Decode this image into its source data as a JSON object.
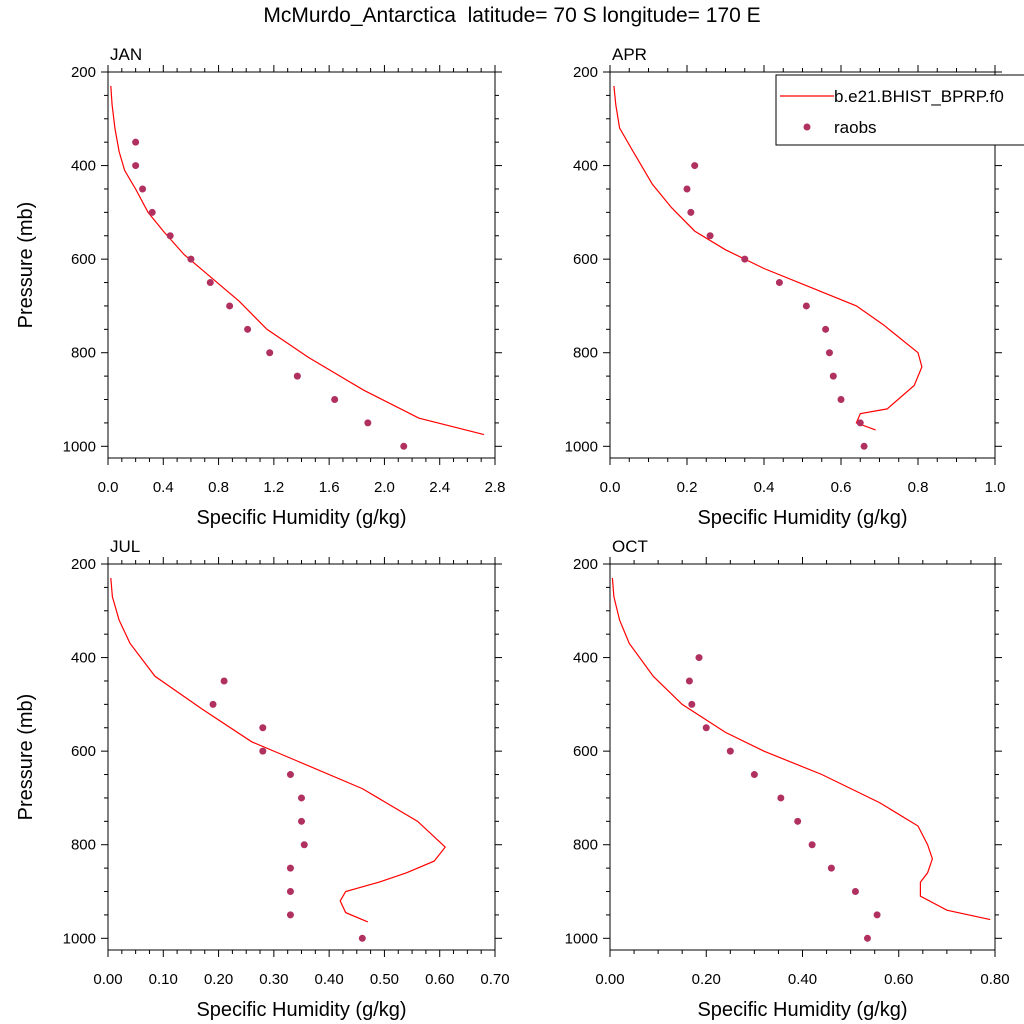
{
  "title": "McMurdo_Antarctica  latitude= 70 S longitude= 170 E",
  "colors": {
    "model": "#ff0000",
    "obs": "#b03060"
  },
  "legend": {
    "model_label": "b.e21.BHIST_BPRP.f0",
    "obs_label": "raobs",
    "placement": "top-right of APR panel"
  },
  "chart_data": [
    {
      "type": "scatter+line",
      "panel_label": "JAN",
      "xlabel": "Specific Humidity (g/kg)",
      "ylabel": "Pressure (mb)",
      "xlim": [
        0,
        2.8
      ],
      "ylim": [
        1025,
        200
      ],
      "xticks": [
        "0.0",
        "0.4",
        "0.8",
        "1.2",
        "1.6",
        "2.0",
        "2.4",
        "2.8"
      ],
      "xtick_values": [
        0,
        0.4,
        0.8,
        1.2,
        1.6,
        2.0,
        2.4,
        2.8
      ],
      "yticks": [
        "200",
        "400",
        "600",
        "800",
        "1000"
      ],
      "ytick_values": [
        200,
        400,
        600,
        800,
        1000
      ],
      "series": [
        {
          "name": "b.e21.BHIST_BPRP.f0",
          "kind": "line",
          "x": [
            0.02,
            0.03,
            0.05,
            0.08,
            0.12,
            0.2,
            0.29,
            0.4,
            0.55,
            0.75,
            0.95,
            1.15,
            1.45,
            1.85,
            2.25,
            2.52,
            2.72
          ],
          "y": [
            230,
            270,
            320,
            370,
            410,
            450,
            500,
            540,
            590,
            640,
            690,
            750,
            810,
            880,
            940,
            960,
            975
          ]
        },
        {
          "name": "raobs",
          "kind": "scatter",
          "x": [
            0.2,
            0.2,
            0.25,
            0.32,
            0.45,
            0.6,
            0.74,
            0.88,
            1.01,
            1.17,
            1.37,
            1.64,
            1.88,
            2.14
          ],
          "y": [
            350,
            400,
            450,
            500,
            550,
            600,
            650,
            700,
            750,
            800,
            850,
            900,
            950,
            1000
          ]
        }
      ]
    },
    {
      "type": "scatter+line",
      "panel_label": "APR",
      "xlabel": "Specific Humidity (g/kg)",
      "ylabel": "",
      "xlim": [
        0,
        1.0
      ],
      "ylim": [
        1025,
        200
      ],
      "xticks": [
        "0.0",
        "0.2",
        "0.4",
        "0.6",
        "0.8",
        "1.0"
      ],
      "xtick_values": [
        0,
        0.2,
        0.4,
        0.6,
        0.8,
        1.0
      ],
      "yticks": [
        "200",
        "400",
        "600",
        "800",
        "1000"
      ],
      "ytick_values": [
        200,
        400,
        600,
        800,
        1000
      ],
      "series": [
        {
          "name": "b.e21.BHIST_BPRP.f0",
          "kind": "line",
          "x": [
            0.01,
            0.015,
            0.025,
            0.06,
            0.11,
            0.16,
            0.22,
            0.3,
            0.4,
            0.52,
            0.64,
            0.71,
            0.8,
            0.81,
            0.79,
            0.72,
            0.65,
            0.64,
            0.69
          ],
          "y": [
            230,
            270,
            320,
            370,
            440,
            490,
            540,
            580,
            620,
            660,
            700,
            740,
            800,
            830,
            870,
            920,
            930,
            950,
            965
          ]
        },
        {
          "name": "raobs",
          "kind": "scatter",
          "x": [
            0.22,
            0.2,
            0.21,
            0.26,
            0.35,
            0.44,
            0.51,
            0.56,
            0.57,
            0.58,
            0.6,
            0.65,
            0.66
          ],
          "y": [
            400,
            450,
            500,
            550,
            600,
            650,
            700,
            750,
            800,
            850,
            900,
            950,
            1000
          ]
        }
      ]
    },
    {
      "type": "scatter+line",
      "panel_label": "JUL",
      "xlabel": "Specific Humidity (g/kg)",
      "ylabel": "Pressure (mb)",
      "xlim": [
        0,
        0.7
      ],
      "ylim": [
        1025,
        200
      ],
      "xticks": [
        "0.00",
        "0.10",
        "0.20",
        "0.30",
        "0.40",
        "0.50",
        "0.60",
        "0.70"
      ],
      "xtick_values": [
        0,
        0.1,
        0.2,
        0.3,
        0.4,
        0.5,
        0.6,
        0.7
      ],
      "yticks": [
        "200",
        "400",
        "600",
        "800",
        "1000"
      ],
      "ytick_values": [
        200,
        400,
        600,
        800,
        1000
      ],
      "series": [
        {
          "name": "b.e21.BHIST_BPRP.f0",
          "kind": "line",
          "x": [
            0.005,
            0.008,
            0.02,
            0.04,
            0.085,
            0.17,
            0.26,
            0.34,
            0.46,
            0.56,
            0.61,
            0.59,
            0.54,
            0.49,
            0.43,
            0.42,
            0.43,
            0.47
          ],
          "y": [
            230,
            270,
            320,
            370,
            440,
            510,
            580,
            620,
            680,
            750,
            805,
            835,
            860,
            880,
            900,
            920,
            945,
            965
          ]
        },
        {
          "name": "raobs",
          "kind": "scatter",
          "x": [
            0.21,
            0.19,
            0.28,
            0.28,
            0.33,
            0.35,
            0.35,
            0.355,
            0.33,
            0.33,
            0.33,
            0.46
          ],
          "y": [
            450,
            500,
            550,
            600,
            650,
            700,
            750,
            800,
            850,
            900,
            950,
            1000
          ]
        }
      ]
    },
    {
      "type": "scatter+line",
      "panel_label": "OCT",
      "xlabel": "Specific Humidity (g/kg)",
      "ylabel": "",
      "xlim": [
        0,
        0.8
      ],
      "ylim": [
        1025,
        200
      ],
      "xticks": [
        "0.00",
        "0.20",
        "0.40",
        "0.60",
        "0.80"
      ],
      "xtick_values": [
        0,
        0.2,
        0.4,
        0.6,
        0.8
      ],
      "yticks": [
        "200",
        "400",
        "600",
        "800",
        "1000"
      ],
      "ytick_values": [
        200,
        400,
        600,
        800,
        1000
      ],
      "series": [
        {
          "name": "b.e21.BHIST_BPRP.f0",
          "kind": "line",
          "x": [
            0.005,
            0.008,
            0.02,
            0.04,
            0.09,
            0.15,
            0.24,
            0.32,
            0.44,
            0.56,
            0.64,
            0.66,
            0.67,
            0.66,
            0.645,
            0.645,
            0.7,
            0.79
          ],
          "y": [
            230,
            270,
            320,
            370,
            440,
            500,
            560,
            600,
            650,
            710,
            760,
            800,
            830,
            860,
            880,
            910,
            940,
            960
          ]
        },
        {
          "name": "raobs",
          "kind": "scatter",
          "x": [
            0.185,
            0.165,
            0.17,
            0.2,
            0.25,
            0.3,
            0.355,
            0.39,
            0.42,
            0.46,
            0.51,
            0.555,
            0.535
          ],
          "y": [
            400,
            450,
            500,
            550,
            600,
            650,
            700,
            750,
            800,
            850,
            900,
            950,
            1000
          ]
        }
      ]
    }
  ]
}
